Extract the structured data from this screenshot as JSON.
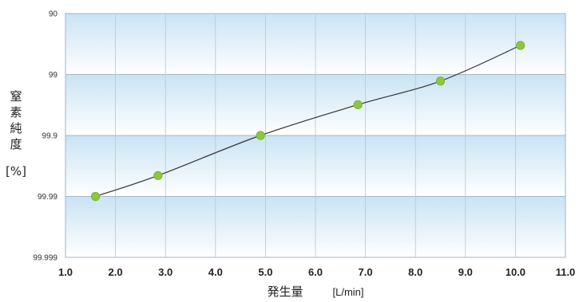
{
  "chart_data": {
    "type": "line",
    "xlabel": "発生量",
    "xunit": "[L/min]",
    "ylabel_chars": [
      "窒",
      "素",
      "純",
      "度"
    ],
    "yunit": "[%]",
    "xlim": [
      1.0,
      11.0
    ],
    "xticks": [
      "1.0",
      "2.0",
      "3.0",
      "4.0",
      "5.0",
      "6.0",
      "7.0",
      "8.0",
      "9.0",
      "10.0",
      "11.0"
    ],
    "ytick_labels": [
      "90",
      "99",
      "99.9",
      "99.99",
      "99.999"
    ],
    "y_scale": "log-impurity (purity %)",
    "grid": true,
    "x": [
      1.6,
      2.85,
      4.9,
      6.85,
      8.5,
      10.1
    ],
    "y": [
      99.99,
      99.978,
      99.9,
      99.68,
      99.22,
      97.0
    ],
    "marker_color": "#8dc63f",
    "line_color": "#333333",
    "band_color": "#c9e3f4"
  }
}
